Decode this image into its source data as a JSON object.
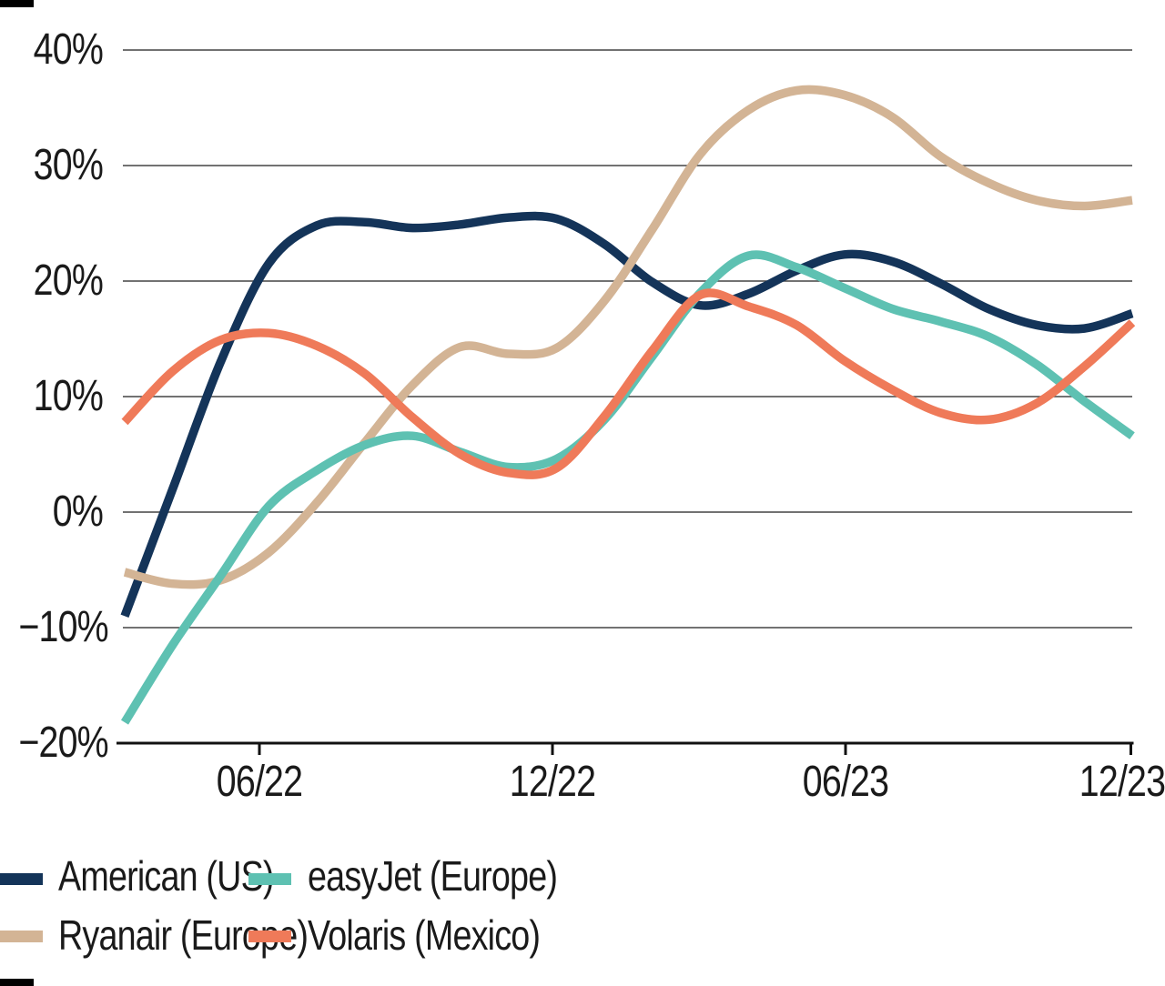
{
  "chart_data": {
    "type": "line",
    "title": "",
    "grid": "horizontal",
    "legend_position": "bottom-left-two-columns",
    "ylim": [
      -20,
      40
    ],
    "y_ticks": [
      40,
      30,
      20,
      10,
      0,
      -10,
      -20
    ],
    "y_tick_labels": [
      "40%",
      "30%",
      "20%",
      "10%",
      "0%",
      "−10%",
      "−20%"
    ],
    "x_tick_labels": [
      "06/22",
      "12/22",
      "06/23",
      "12/23"
    ],
    "x_months": [
      "03/22",
      "04/22",
      "05/22",
      "06/22",
      "07/22",
      "08/22",
      "09/22",
      "10/22",
      "11/22",
      "12/22",
      "01/23",
      "02/23",
      "03/23",
      "04/23",
      "05/23",
      "06/23",
      "07/23",
      "08/23",
      "09/23",
      "10/23",
      "11/23",
      "12/23"
    ],
    "series": [
      {
        "name": "American (US)",
        "color": "#143459",
        "values": [
          -9.0,
          2.0,
          13.0,
          21.5,
          24.8,
          25.1,
          24.6,
          24.9,
          25.5,
          25.4,
          23.2,
          19.9,
          17.9,
          18.9,
          20.9,
          22.3,
          21.7,
          19.8,
          17.6,
          16.2,
          15.9,
          17.2
        ]
      },
      {
        "name": "Ryanair (Europe)",
        "color": "#d3b495",
        "values": [
          -5.2,
          -6.2,
          -5.9,
          -3.5,
          0.8,
          6.0,
          11.0,
          14.3,
          13.7,
          14.2,
          18.3,
          24.5,
          31.0,
          34.8,
          36.5,
          36.1,
          34.2,
          30.8,
          28.5,
          27.0,
          26.5,
          27.0
        ]
      },
      {
        "name": "easyJet (Europe)",
        "color": "#5ec1b2",
        "values": [
          -18.2,
          -11.5,
          -5.5,
          0.5,
          3.6,
          5.8,
          6.6,
          5.2,
          3.9,
          4.6,
          8.0,
          13.5,
          19.0,
          22.2,
          21.2,
          19.4,
          17.6,
          16.5,
          15.2,
          12.8,
          9.6,
          6.6
        ]
      },
      {
        "name": "Volaris (Mexico)",
        "color": "#ef7a59",
        "values": [
          7.8,
          12.2,
          14.9,
          15.5,
          14.4,
          12.0,
          8.2,
          5.0,
          3.4,
          3.8,
          8.3,
          14.0,
          18.8,
          17.8,
          16.2,
          13.1,
          10.6,
          8.6,
          8.0,
          9.4,
          12.6,
          16.4
        ]
      }
    ]
  },
  "legend": {
    "items": [
      {
        "label": "American (US)",
        "color": "#143459"
      },
      {
        "label": "Ryanair (Europe)",
        "color": "#d3b495"
      },
      {
        "label": "easyJet (Europe)",
        "color": "#5ec1b2"
      },
      {
        "label": "Volaris (Mexico)",
        "color": "#ef7a59"
      }
    ]
  },
  "colors": {
    "background": "#ffffff",
    "grid": "#444444",
    "axis": "#111111",
    "text": "#1a1a1a",
    "corner_mark": "#000000"
  }
}
